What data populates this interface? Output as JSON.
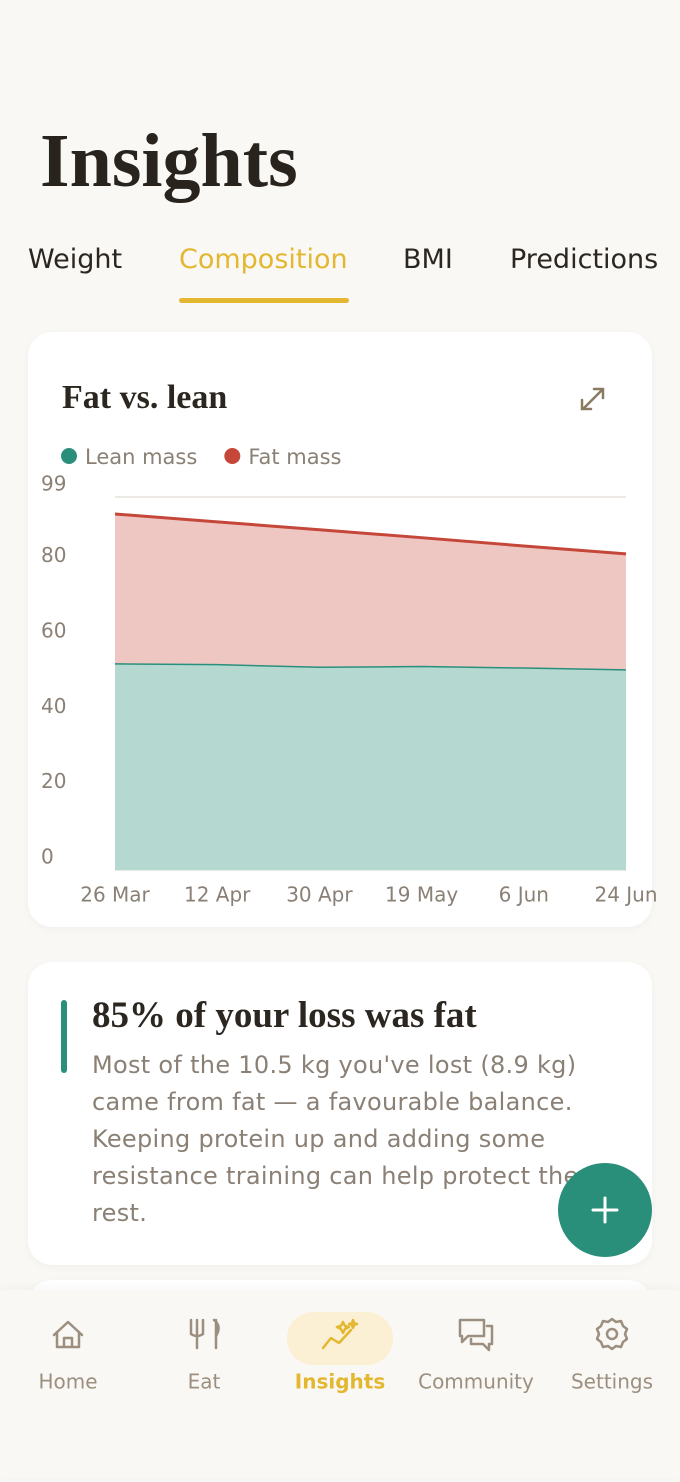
{
  "header": {
    "title": "Insights"
  },
  "tabs": {
    "items": [
      "Weight",
      "Composition",
      "BMI",
      "Predictions"
    ],
    "active": 1
  },
  "chart_data": {
    "type": "area",
    "stacked": true,
    "title": "Fat vs. lean",
    "categories": [
      "26 Mar",
      "12 Apr",
      "30 Apr",
      "19 May",
      "6 Jun",
      "24 Jun"
    ],
    "series": [
      {
        "name": "Lean mass",
        "color": "#2a8f7a",
        "fill": "#b5d8d0",
        "values": [
          54.9,
          54.7,
          54.0,
          54.2,
          53.8,
          53.3
        ]
      },
      {
        "name": "Fat mass",
        "color": "#c4473a",
        "fill": "#eec7c3",
        "values": [
          39.6,
          37.7,
          36.3,
          34.0,
          32.2,
          30.6
        ]
      }
    ],
    "ylim": [
      0,
      99
    ],
    "yticks": [
      0,
      20,
      40,
      60,
      80,
      99
    ],
    "grid": true
  },
  "insight": {
    "title": "85% of your loss was fat",
    "body": "Most of the 10.5 kg you've lost (8.9 kg) came from fat — a favourable balance. Keeping protein up and adding some resistance training can help protect the rest."
  },
  "nav": {
    "items": [
      "Home",
      "Eat",
      "Insights",
      "Community",
      "Settings"
    ],
    "active": 2
  }
}
